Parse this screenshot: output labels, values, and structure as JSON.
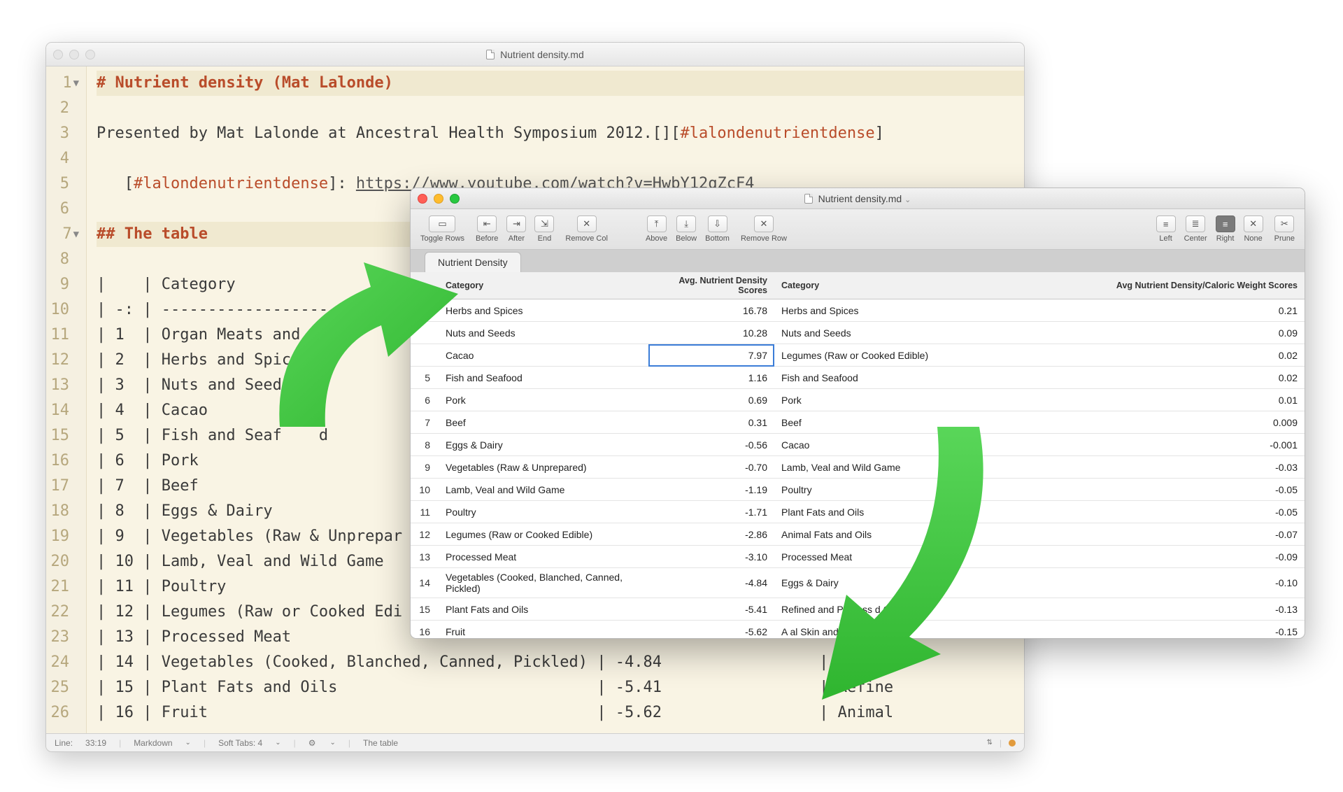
{
  "editor": {
    "title": "Nutrient density.md",
    "lines": [
      {
        "n": "1",
        "fold": true
      },
      {
        "n": "2"
      },
      {
        "n": "3"
      },
      {
        "n": "4"
      },
      {
        "n": "5"
      },
      {
        "n": "6"
      },
      {
        "n": "7",
        "fold": true
      },
      {
        "n": "8"
      },
      {
        "n": "9"
      },
      {
        "n": "10"
      },
      {
        "n": "11"
      },
      {
        "n": "12"
      },
      {
        "n": "13"
      },
      {
        "n": "14"
      },
      {
        "n": "15"
      },
      {
        "n": "16"
      },
      {
        "n": "17"
      },
      {
        "n": "18"
      },
      {
        "n": "19"
      },
      {
        "n": "20"
      },
      {
        "n": "21"
      },
      {
        "n": "22"
      },
      {
        "n": "23"
      },
      {
        "n": "24"
      },
      {
        "n": "25"
      },
      {
        "n": "26"
      }
    ],
    "heading1": "# Nutrient density (Mat Lalonde)",
    "para": "Presented by Mat Lalonde at Ancestral Health Symposium 2012.[][",
    "linkref": "#lalondenutrientdense",
    "para_end": "]",
    "linkdef_pre": "   [",
    "linkdef_ref": "#lalondenutrientdense",
    "linkdef_mid": "]: ",
    "linkdef_url": "https://www.youtube.com/watch?v=HwbY12qZcF4",
    "heading2": "## The table",
    "table_lines": [
      "|    | Category",
      "| -: | ----------------------",
      "| 1  | Organ Meats and Oi",
      "| 2  | Herbs and Spices",
      "| 3  | Nuts and Seeds",
      "| 4  | Cacao",
      "| 5  | Fish and Seaf    d",
      "| 6  | Pork",
      "| 7  | Beef",
      "| 8  | Eggs & Dairy",
      "| 9  | Vegetables (Raw & Unprepar",
      "| 10 | Lamb, Veal and Wild Game",
      "| 11 | Poultry",
      "| 12 | Legumes (Raw or Cooked Edi",
      "| 13 | Processed Meat",
      "| 14 | Vegetables (Cooked, Blanched, Canned, Pickled) | -4.84",
      "| 15 | Plant Fats and Oils                            | -5.41",
      "| 16 | Fruit                                          | -5.62"
    ],
    "extra_right": [
      "| Eggs &",
      "| Refine",
      "| Animal"
    ],
    "status": {
      "pos": "33:19",
      "lang": "Markdown",
      "tabs": "Soft Tabs:  4",
      "crumb": "The table"
    }
  },
  "tableWin": {
    "title": "Nutrient density.md",
    "toolbar": {
      "toggle": "Toggle Rows",
      "before": "Before",
      "after": "After",
      "end": "End",
      "removeCol": "Remove Col",
      "above": "Above",
      "below": "Below",
      "bottom": "Bottom",
      "removeRow": "Remove Row",
      "left": "Left",
      "center": "Center",
      "right": "Right",
      "none": "None",
      "prune": "Prune"
    },
    "tab": "Nutrient Density",
    "columns": {
      "idx": "",
      "cat1": "Category",
      "score1": "Avg. Nutrient Density Scores",
      "cat2": "Category",
      "score2": "Avg Nutrient Density/Caloric Weight Scores"
    },
    "rows": [
      {
        "i": "2",
        "c1": "Herbs and Spices",
        "s1": "16.78",
        "c2": "Herbs and Spices",
        "s2": "0.21"
      },
      {
        "i": "",
        "c1": "Nuts and Seeds",
        "s1": "10.28",
        "c2": "Nuts and Seeds",
        "s2": "0.09"
      },
      {
        "i": "",
        "c1": "Cacao",
        "s1": "7.97",
        "c2": "Legumes (Raw or Cooked Edible)",
        "s2": "0.02",
        "selected": true
      },
      {
        "i": "5",
        "c1": "Fish and Seafood",
        "s1": "1.16",
        "c2": "Fish and Seafood",
        "s2": "0.02"
      },
      {
        "i": "6",
        "c1": "Pork",
        "s1": "0.69",
        "c2": "Pork",
        "s2": "0.01"
      },
      {
        "i": "7",
        "c1": "Beef",
        "s1": "0.31",
        "c2": "Beef",
        "s2": "0.009"
      },
      {
        "i": "8",
        "c1": "Eggs & Dairy",
        "s1": "-0.56",
        "c2": "Cacao",
        "s2": "-0.001"
      },
      {
        "i": "9",
        "c1": "Vegetables (Raw & Unprepared)",
        "s1": "-0.70",
        "c2": "Lamb, Veal and Wild Game",
        "s2": "-0.03"
      },
      {
        "i": "10",
        "c1": "Lamb, Veal and Wild Game",
        "s1": "-1.19",
        "c2": "Poultry",
        "s2": "-0.05"
      },
      {
        "i": "11",
        "c1": "Poultry",
        "s1": "-1.71",
        "c2": "Plant Fats and Oils",
        "s2": "-0.05"
      },
      {
        "i": "12",
        "c1": "Legumes (Raw or Cooked Edible)",
        "s1": "-2.86",
        "c2": "Animal Fats and Oils",
        "s2": "-0.07"
      },
      {
        "i": "13",
        "c1": "Processed Meat",
        "s1": "-3.10",
        "c2": "Processed Meat",
        "s2": "-0.09"
      },
      {
        "i": "14",
        "c1": "Vegetables (Cooked, Blanched, Canned, Pickled)",
        "s1": "-4.84",
        "c2": "Eggs & Dairy",
        "s2": "-0.10"
      },
      {
        "i": "15",
        "c1": "Plant Fats and Oils",
        "s1": "-5.41",
        "c2": "Refined and Process          d Oils",
        "s2": "-0.13"
      },
      {
        "i": "16",
        "c1": "Fruit",
        "s1": "-5.62",
        "c2": "A     al Skin and",
        "s2": "-0.15"
      }
    ]
  },
  "colors": {
    "arrow": "#3cc13c"
  }
}
